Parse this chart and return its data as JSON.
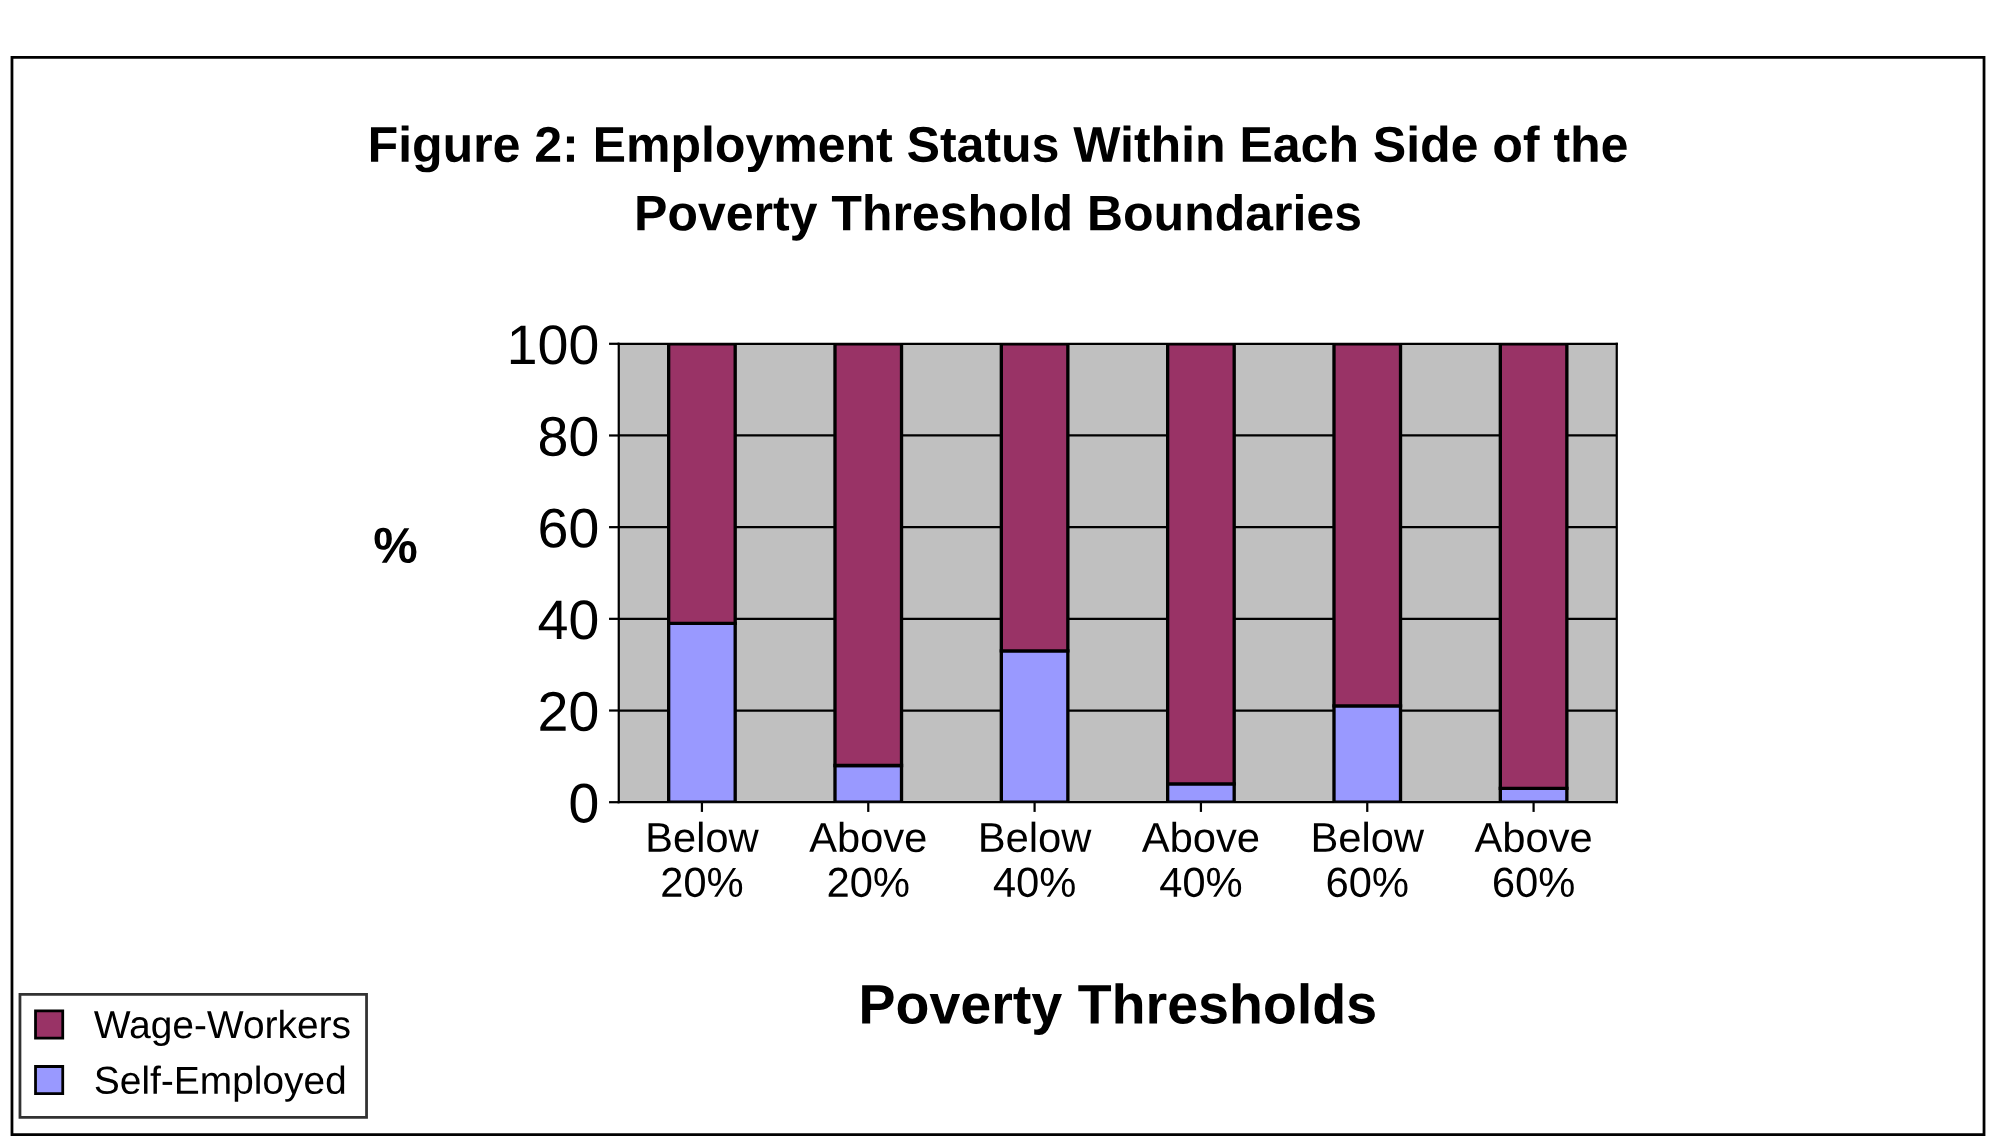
{
  "chart_data": {
    "type": "bar",
    "title": "Figure 2: Employment Status Within Each Side of the\nPoverty Threshold Boundaries",
    "xlabel": "Poverty Thresholds",
    "ylabel": "%",
    "categories": [
      "Below\n20%",
      "Above\n20%",
      "Below\n40%",
      "Above\n40%",
      "Below\n60%",
      "Above\n60%"
    ],
    "stacked": true,
    "series": [
      {
        "name": "Self-Employed",
        "color": "#9999ff",
        "values": [
          39,
          8,
          33,
          4,
          21,
          3
        ]
      },
      {
        "name": "Wage-Workers",
        "color": "#993366",
        "values": [
          61,
          92,
          67,
          96,
          79,
          97
        ]
      }
    ],
    "ylim": [
      0,
      100
    ],
    "yticks": [
      0,
      20,
      40,
      60,
      80,
      100
    ],
    "grid": "y",
    "legend": "bottom left"
  }
}
